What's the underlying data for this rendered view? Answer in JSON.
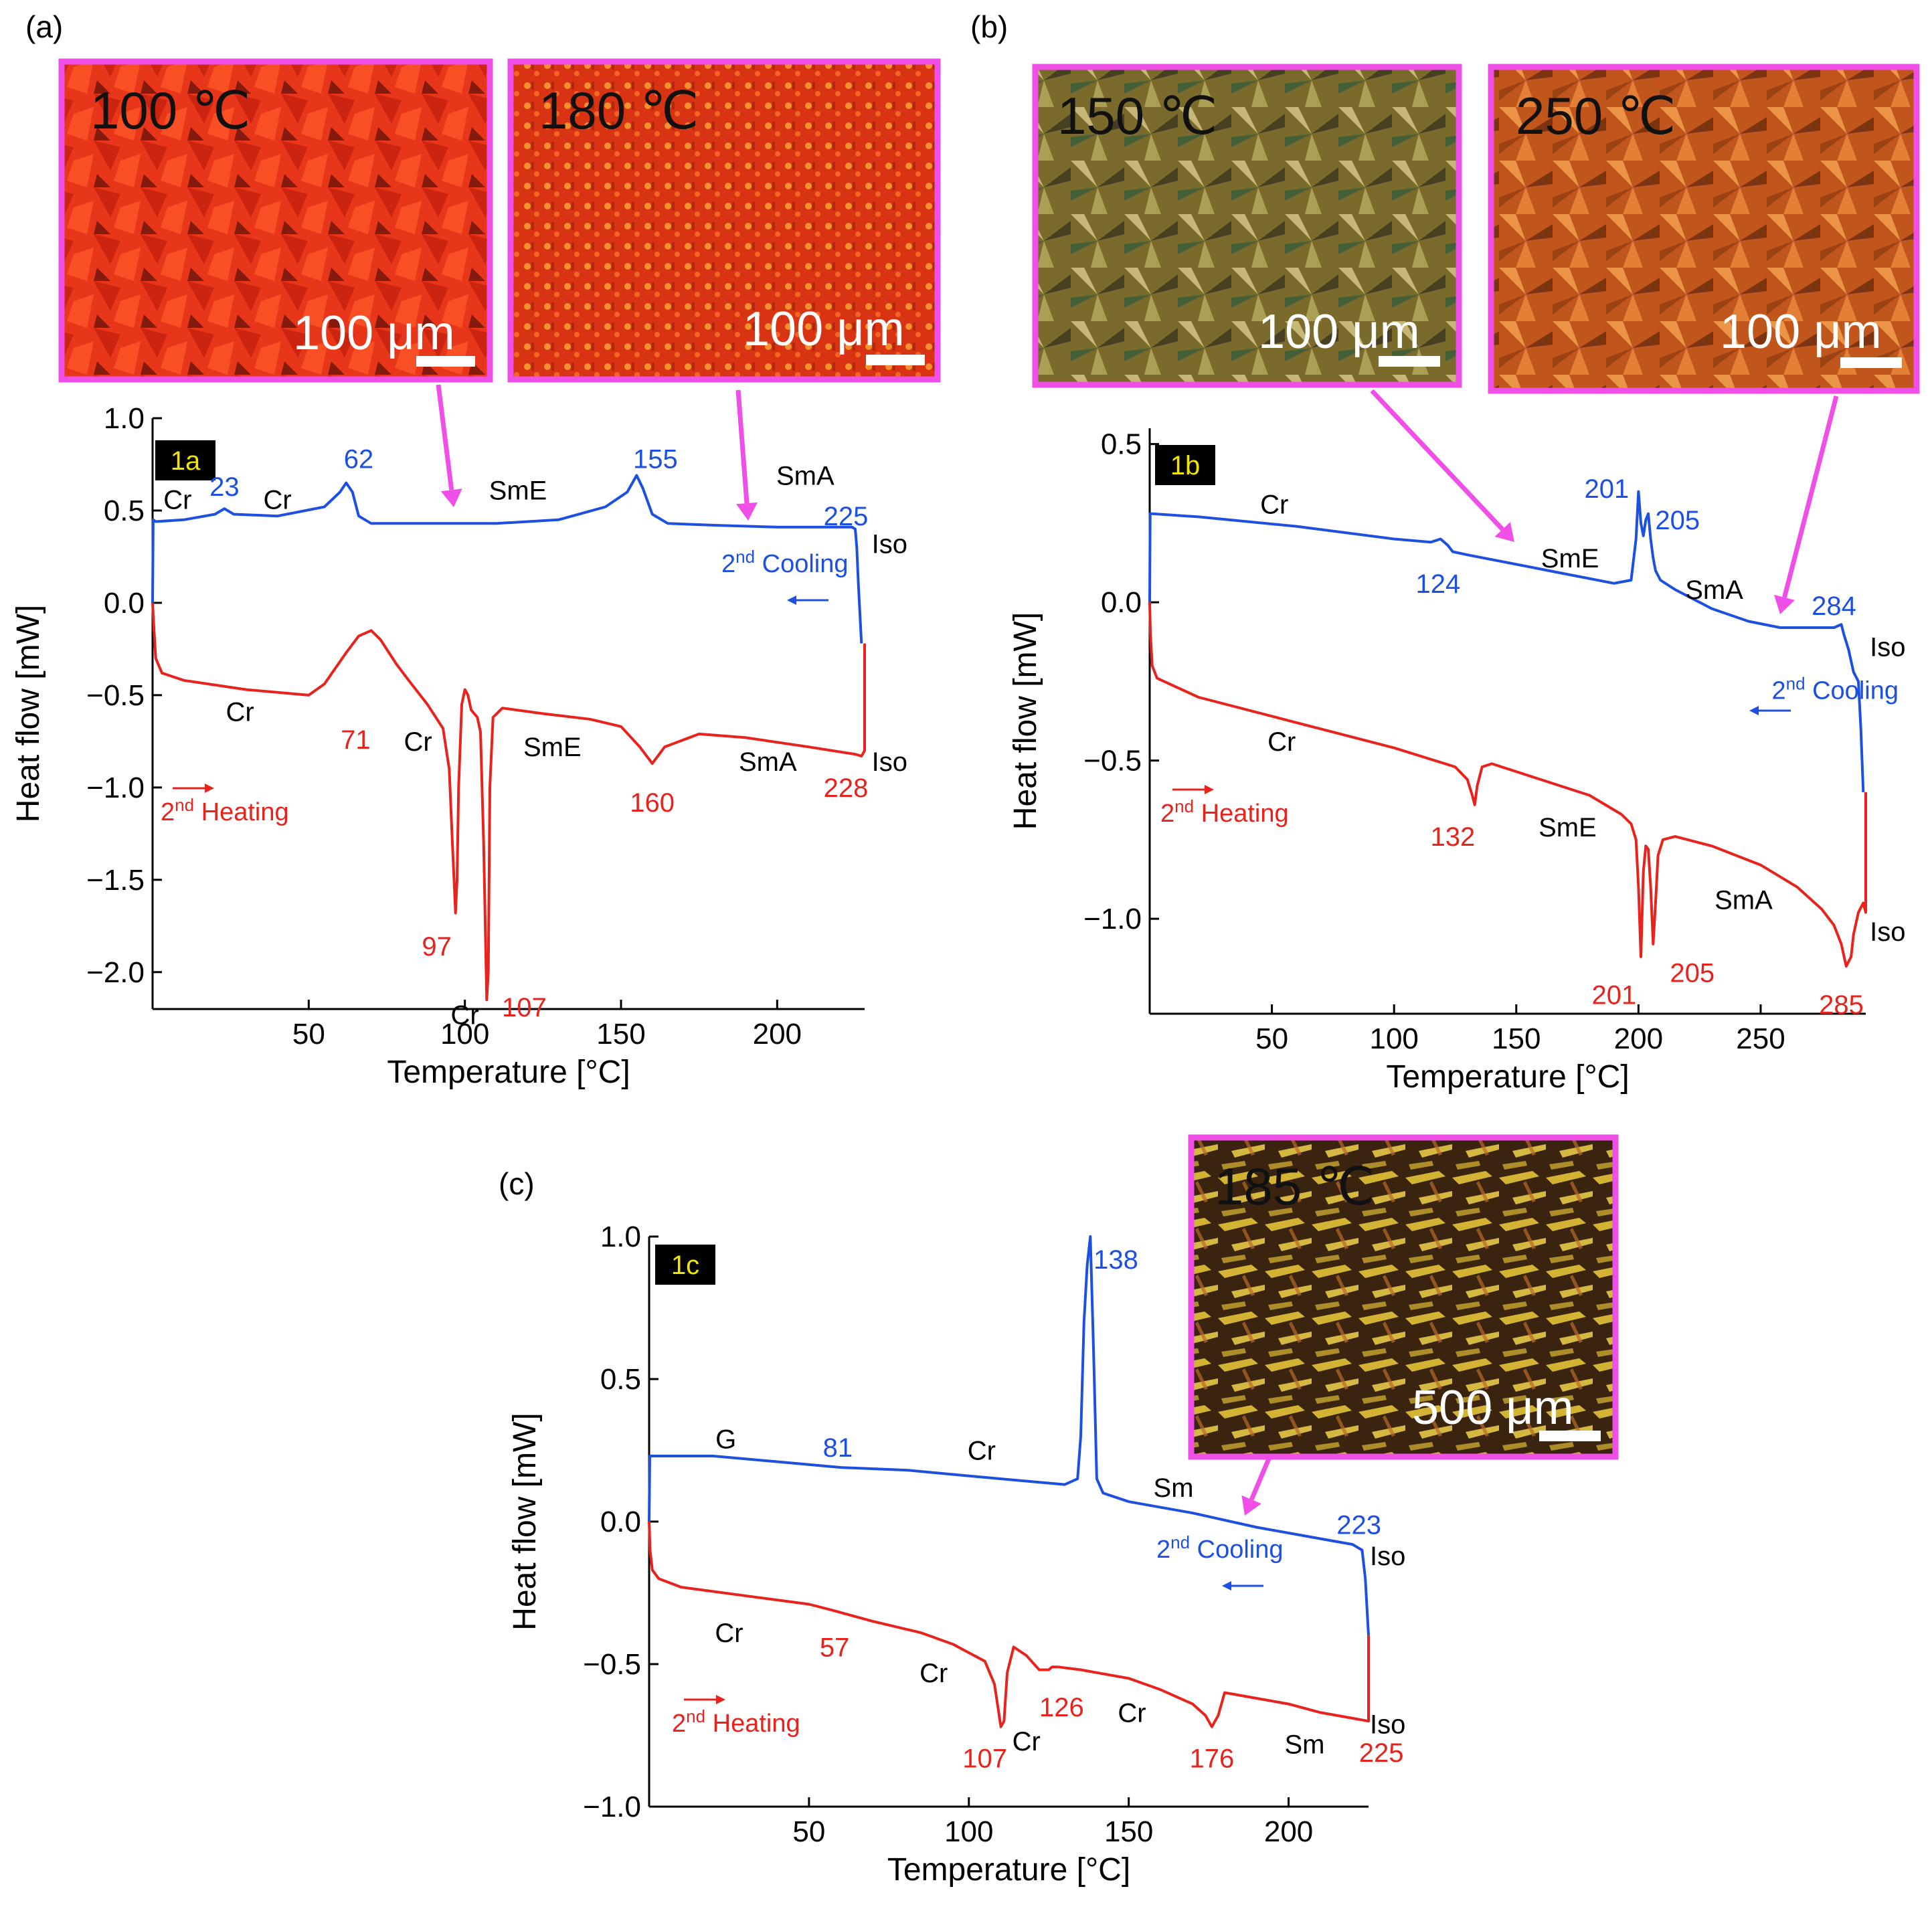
{
  "colors": {
    "heating": "#e8231e",
    "cooling": "#1d4fe0",
    "arrow": "#ef4fe6",
    "axis": "#000000"
  },
  "chart_data": [
    {
      "panel_label": "(a)",
      "badge": "1a",
      "type": "line",
      "xlabel": "Temperature [°C]",
      "ylabel": "Heat flow [mW]",
      "xlim": [
        0,
        228
      ],
      "ylim": [
        -2.2,
        1.0
      ],
      "xticks": [
        50,
        100,
        150,
        200
      ],
      "yticks": [
        1.0,
        0.5,
        0.0,
        -0.5,
        -1.0,
        -1.5,
        -2.0
      ],
      "ytick_labels": [
        "1.0",
        "0.5",
        "0.0",
        "−0.5",
        "−1.0",
        "−1.5",
        "−2.0"
      ],
      "heating_label": "2nd Heating",
      "cooling_label": "2nd Cooling",
      "series": [
        {
          "name": "2nd Cooling",
          "color": "#1d4fe0",
          "x": [
            0,
            0.2,
            1,
            10,
            20,
            23,
            26,
            40,
            55,
            60,
            62,
            64,
            66,
            70,
            90,
            110,
            130,
            145,
            152,
            155,
            157,
            160,
            165,
            180,
            200,
            215,
            224,
            225,
            225.5,
            226,
            227
          ],
          "y": [
            0.0,
            0.45,
            0.44,
            0.45,
            0.48,
            0.51,
            0.48,
            0.47,
            0.52,
            0.6,
            0.65,
            0.6,
            0.47,
            0.43,
            0.43,
            0.43,
            0.45,
            0.52,
            0.6,
            0.69,
            0.62,
            0.48,
            0.43,
            0.42,
            0.41,
            0.41,
            0.41,
            0.4,
            0.3,
            0.1,
            -0.22
          ]
        },
        {
          "name": "2nd Heating",
          "color": "#e8231e",
          "x": [
            0,
            0.3,
            1,
            3,
            10,
            30,
            50,
            55,
            62,
            66,
            70,
            73,
            78,
            82,
            88,
            93,
            95,
            96,
            97,
            97.5,
            98,
            99,
            100,
            101,
            102,
            104,
            105,
            106,
            107,
            107.5,
            108,
            109,
            112,
            125,
            140,
            150,
            156,
            160,
            164,
            175,
            190,
            210,
            225,
            227,
            228,
            228
          ],
          "y": [
            0.0,
            -0.1,
            -0.3,
            -0.38,
            -0.42,
            -0.47,
            -0.5,
            -0.44,
            -0.27,
            -0.18,
            -0.15,
            -0.2,
            -0.33,
            -0.42,
            -0.55,
            -0.68,
            -0.9,
            -1.3,
            -1.68,
            -1.5,
            -1.0,
            -0.55,
            -0.47,
            -0.5,
            -0.58,
            -0.62,
            -0.7,
            -1.3,
            -2.15,
            -2.0,
            -1.0,
            -0.62,
            -0.57,
            -0.6,
            -0.63,
            -0.67,
            -0.78,
            -0.87,
            -0.78,
            -0.71,
            -0.73,
            -0.78,
            -0.82,
            -0.83,
            -0.8,
            -0.22
          ]
        }
      ],
      "annotations": [
        {
          "text": "23",
          "x": 23,
          "y": 0.63,
          "color": "blue"
        },
        {
          "text": "62",
          "x": 66,
          "y": 0.78,
          "color": "blue"
        },
        {
          "text": "155",
          "x": 161,
          "y": 0.78,
          "color": "blue"
        },
        {
          "text": "225",
          "x": 222,
          "y": 0.47,
          "color": "blue"
        },
        {
          "text": "Cr",
          "x": 8,
          "y": 0.56,
          "color": "black"
        },
        {
          "text": "Cr",
          "x": 40,
          "y": 0.56,
          "color": "black"
        },
        {
          "text": "SmE",
          "x": 117,
          "y": 0.61,
          "color": "black"
        },
        {
          "text": "SmA",
          "x": 209,
          "y": 0.69,
          "color": "black"
        },
        {
          "text": "Iso",
          "x": 236,
          "y": 0.32,
          "color": "black"
        },
        {
          "text": "71",
          "x": 65,
          "y": -0.74,
          "color": "red"
        },
        {
          "text": "Cr",
          "x": 28,
          "y": -0.59,
          "color": "black"
        },
        {
          "text": "Cr",
          "x": 85,
          "y": -0.75,
          "color": "black"
        },
        {
          "text": "SmE",
          "x": 128,
          "y": -0.78,
          "color": "black"
        },
        {
          "text": "160",
          "x": 160,
          "y": -1.08,
          "color": "red"
        },
        {
          "text": "SmA",
          "x": 197,
          "y": -0.86,
          "color": "black"
        },
        {
          "text": "228",
          "x": 222,
          "y": -1.0,
          "color": "red"
        },
        {
          "text": "Iso",
          "x": 236,
          "y": -0.86,
          "color": "black"
        },
        {
          "text": "97",
          "x": 91,
          "y": -1.86,
          "color": "red"
        },
        {
          "text": "Cr",
          "x": 100,
          "y": -2.23,
          "color": "black"
        },
        {
          "text": "107",
          "x": 119,
          "y": -2.19,
          "color": "red"
        }
      ],
      "images": [
        {
          "temp": "100 ℃",
          "scale": "100 μm",
          "points_to": 100
        },
        {
          "temp": "180 ℃",
          "scale": "100 μm",
          "points_to": 194
        }
      ]
    },
    {
      "panel_label": "(b)",
      "badge": "1b",
      "type": "line",
      "xlabel": "Temperature [°C]",
      "ylabel": "Heat flow [mW]",
      "xlim": [
        0,
        293
      ],
      "ylim": [
        -1.3,
        0.55
      ],
      "xticks": [
        50,
        100,
        150,
        200,
        250
      ],
      "yticks": [
        0.5,
        0.0,
        -0.5,
        -1.0
      ],
      "ytick_labels": [
        "0.5",
        "0.0",
        "−0.5",
        "−1.0"
      ],
      "heating_label": "2nd Heating",
      "cooling_label": "2nd Cooling",
      "series": [
        {
          "name": "2nd Cooling",
          "color": "#1d4fe0",
          "x": [
            0,
            0.2,
            1,
            20,
            60,
            100,
            115,
            119,
            122,
            124,
            130,
            150,
            170,
            190,
            197,
            199,
            200,
            201,
            202,
            203,
            204,
            205,
            206,
            207,
            209,
            215,
            230,
            245,
            258,
            270,
            280,
            283,
            284,
            286,
            288,
            290,
            291,
            292
          ],
          "y": [
            0.0,
            0.28,
            0.28,
            0.27,
            0.24,
            0.2,
            0.19,
            0.2,
            0.18,
            0.16,
            0.15,
            0.12,
            0.09,
            0.06,
            0.07,
            0.2,
            0.35,
            0.25,
            0.21,
            0.26,
            0.28,
            0.2,
            0.14,
            0.1,
            0.07,
            0.04,
            -0.02,
            -0.06,
            -0.08,
            -0.08,
            -0.08,
            -0.07,
            -0.1,
            -0.15,
            -0.22,
            -0.25,
            -0.4,
            -0.6
          ]
        },
        {
          "name": "2nd Heating",
          "color": "#e8231e",
          "x": [
            0,
            0.3,
            1,
            3,
            20,
            60,
            100,
            125,
            130,
            132,
            133,
            134,
            136,
            140,
            160,
            180,
            193,
            197,
            199,
            200,
            201,
            202,
            203,
            204,
            205,
            206,
            207,
            208,
            210,
            215,
            230,
            250,
            265,
            275,
            280,
            283,
            285,
            287,
            288,
            290,
            292,
            293,
            293
          ],
          "y": [
            0.0,
            -0.1,
            -0.2,
            -0.24,
            -0.3,
            -0.38,
            -0.46,
            -0.52,
            -0.56,
            -0.61,
            -0.64,
            -0.58,
            -0.52,
            -0.51,
            -0.56,
            -0.61,
            -0.67,
            -0.7,
            -0.75,
            -0.9,
            -1.12,
            -0.85,
            -0.77,
            -0.78,
            -0.9,
            -1.08,
            -0.95,
            -0.8,
            -0.75,
            -0.74,
            -0.77,
            -0.83,
            -0.9,
            -0.97,
            -1.02,
            -1.08,
            -1.15,
            -1.12,
            -1.05,
            -0.98,
            -0.95,
            -0.98,
            -0.6
          ]
        }
      ],
      "annotations": [
        {
          "text": "Cr",
          "x": 51,
          "y": 0.31,
          "color": "black"
        },
        {
          "text": "124",
          "x": 118,
          "y": 0.06,
          "color": "blue"
        },
        {
          "text": "SmE",
          "x": 172,
          "y": 0.14,
          "color": "black"
        },
        {
          "text": "201",
          "x": 187,
          "y": 0.36,
          "color": "blue"
        },
        {
          "text": "205",
          "x": 216,
          "y": 0.26,
          "color": "blue"
        },
        {
          "text": "SmA",
          "x": 231,
          "y": 0.04,
          "color": "black"
        },
        {
          "text": "284",
          "x": 280,
          "y": -0.01,
          "color": "blue"
        },
        {
          "text": "Iso",
          "x": 302,
          "y": -0.14,
          "color": "black"
        },
        {
          "text": "2nd Cooling",
          "x": 260,
          "y": -0.28,
          "color": "blue"
        },
        {
          "text": "Cr",
          "x": 54,
          "y": -0.44,
          "color": "black"
        },
        {
          "text": "132",
          "x": 124,
          "y": -0.74,
          "color": "red"
        },
        {
          "text": "SmE",
          "x": 171,
          "y": -0.71,
          "color": "black"
        },
        {
          "text": "SmA",
          "x": 243,
          "y": -0.94,
          "color": "black"
        },
        {
          "text": "Iso",
          "x": 302,
          "y": -1.04,
          "color": "black"
        },
        {
          "text": "201",
          "x": 190,
          "y": -1.24,
          "color": "red"
        },
        {
          "text": "205",
          "x": 222,
          "y": -1.17,
          "color": "red"
        },
        {
          "text": "285",
          "x": 283,
          "y": -1.27,
          "color": "red"
        }
      ],
      "images": [
        {
          "temp": "150 ℃",
          "scale": "100 μm",
          "points_to": 150
        },
        {
          "temp": "250 ℃",
          "scale": "100 μm",
          "points_to": 258
        }
      ]
    },
    {
      "panel_label": "(c)",
      "badge": "1c",
      "type": "line",
      "xlabel": "Temperature [°C]",
      "ylabel": "Heat flow [mW]",
      "xlim": [
        0,
        225
      ],
      "ylim": [
        -1.0,
        1.0
      ],
      "xticks": [
        50,
        100,
        150,
        200
      ],
      "yticks": [
        1.0,
        0.5,
        0.0,
        -0.5,
        -1.0
      ],
      "ytick_labels": [
        "1.0",
        "0.5",
        "0.0",
        "−0.5",
        "−1.0"
      ],
      "heating_label": "2nd Heating",
      "cooling_label": "2nd Cooling",
      "series": [
        {
          "name": "2nd Cooling",
          "color": "#1d4fe0",
          "x": [
            0,
            0.2,
            1,
            20,
            40,
            60,
            81,
            100,
            120,
            130,
            134,
            135,
            136,
            137,
            138,
            139,
            140,
            142,
            150,
            170,
            190,
            210,
            220,
            223,
            224,
            225
          ],
          "y": [
            0.0,
            0.23,
            0.23,
            0.23,
            0.21,
            0.19,
            0.18,
            0.16,
            0.14,
            0.13,
            0.15,
            0.3,
            0.7,
            0.9,
            1.0,
            0.6,
            0.15,
            0.1,
            0.07,
            0.03,
            -0.02,
            -0.06,
            -0.08,
            -0.1,
            -0.2,
            -0.4
          ]
        },
        {
          "name": "2nd Heating",
          "color": "#e8231e",
          "x": [
            0,
            0.3,
            1,
            3,
            10,
            30,
            50,
            57,
            70,
            85,
            95,
            100,
            105,
            108,
            110,
            111,
            112,
            114,
            118,
            122,
            125,
            126,
            128,
            135,
            150,
            160,
            170,
            174,
            176,
            178,
            180,
            190,
            200,
            210,
            220,
            225,
            225
          ],
          "y": [
            0.0,
            -0.1,
            -0.17,
            -0.2,
            -0.23,
            -0.26,
            -0.29,
            -0.31,
            -0.35,
            -0.39,
            -0.43,
            -0.46,
            -0.49,
            -0.57,
            -0.72,
            -0.7,
            -0.53,
            -0.44,
            -0.47,
            -0.52,
            -0.52,
            -0.51,
            -0.51,
            -0.52,
            -0.55,
            -0.59,
            -0.64,
            -0.68,
            -0.72,
            -0.68,
            -0.6,
            -0.62,
            -0.64,
            -0.67,
            -0.69,
            -0.7,
            -0.4
          ]
        }
      ],
      "annotations": [
        {
          "text": "G",
          "x": 24,
          "y": 0.29,
          "color": "black"
        },
        {
          "text": "81",
          "x": 59,
          "y": 0.26,
          "color": "blue"
        },
        {
          "text": "Cr",
          "x": 104,
          "y": 0.25,
          "color": "black"
        },
        {
          "text": "138",
          "x": 146,
          "y": 0.92,
          "color": "blue"
        },
        {
          "text": "Sm",
          "x": 164,
          "y": 0.12,
          "color": "black"
        },
        {
          "text": "223",
          "x": 222,
          "y": -0.01,
          "color": "blue"
        },
        {
          "text": "Iso",
          "x": 231,
          "y": -0.12,
          "color": "black"
        },
        {
          "text": "Cr",
          "x": 25,
          "y": -0.39,
          "color": "black"
        },
        {
          "text": "57",
          "x": 58,
          "y": -0.44,
          "color": "red"
        },
        {
          "text": "Cr",
          "x": 89,
          "y": -0.53,
          "color": "black"
        },
        {
          "text": "126",
          "x": 129,
          "y": -0.65,
          "color": "red"
        },
        {
          "text": "Cr",
          "x": 151,
          "y": -0.67,
          "color": "black"
        },
        {
          "text": "107",
          "x": 105,
          "y": -0.83,
          "color": "red"
        },
        {
          "text": "Cr",
          "x": 118,
          "y": -0.77,
          "color": "black"
        },
        {
          "text": "176",
          "x": 176,
          "y": -0.83,
          "color": "red"
        },
        {
          "text": "Sm",
          "x": 205,
          "y": -0.78,
          "color": "black"
        },
        {
          "text": "225",
          "x": 229,
          "y": -0.81,
          "color": "red"
        },
        {
          "text": "Iso",
          "x": 231,
          "y": -0.71,
          "color": "black"
        }
      ],
      "images": [
        {
          "temp": "185 ℃",
          "scale": "500 μm",
          "points_to": 185
        }
      ]
    }
  ]
}
